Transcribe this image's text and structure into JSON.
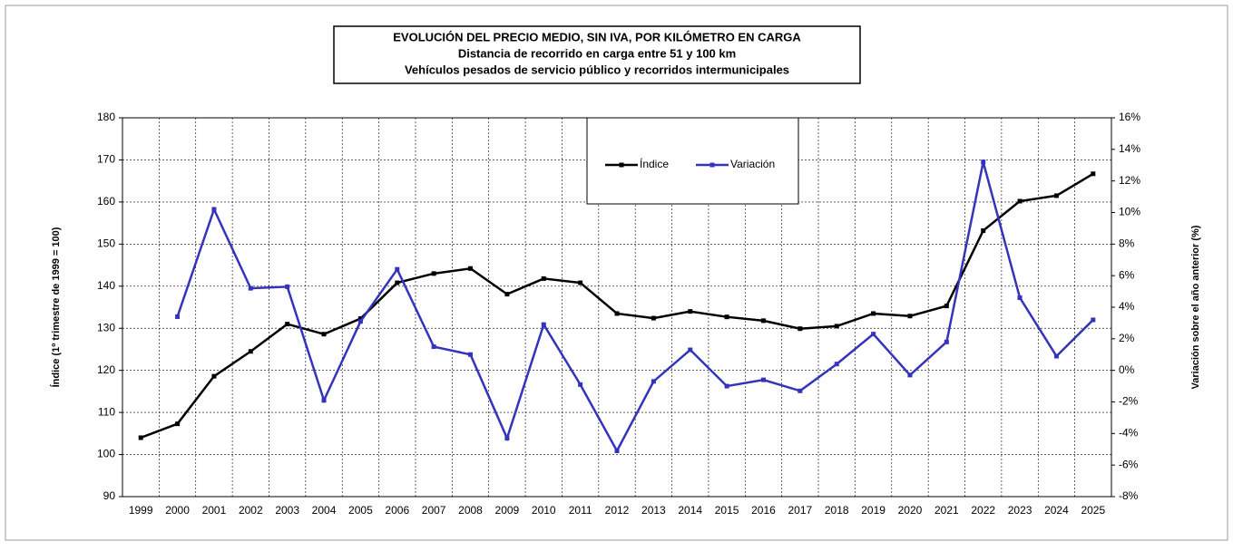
{
  "chart_data": {
    "type": "line",
    "title": [
      "EVOLUCIÓN DEL PRECIO MEDIO, SIN IVA, POR KILÓMETRO EN CARGA",
      "Distancia de recorrido en carga entre 51 y 100 km",
      "Vehículos pesados de servicio público y recorridos intermunicipales"
    ],
    "y_label": "Índice (1º trimestre de 1999 = 100)",
    "y2_label": "Variación sobre el año anterior (%)",
    "categories": [
      "1999",
      "2000",
      "2001",
      "2002",
      "2003",
      "2004",
      "2005",
      "2006",
      "2007",
      "2008",
      "2009",
      "2010",
      "2011",
      "2012",
      "2013",
      "2014",
      "2015",
      "2016",
      "2017",
      "2018",
      "2019",
      "2020",
      "2021",
      "2022",
      "2023",
      "2024",
      "2025"
    ],
    "series": [
      {
        "name": "Índice",
        "color": "#000000",
        "values": [
          104,
          107.3,
          118.6,
          124.5,
          131,
          128.6,
          132.3,
          140.8,
          143,
          144.2,
          138.1,
          141.8,
          140.8,
          133.5,
          132.4,
          134,
          132.7,
          131.8,
          129.9,
          130.5,
          133.5,
          132.9,
          135.3,
          153.2,
          160.2,
          161.5,
          166.7
        ]
      },
      {
        "name": "Variación",
        "color": "#3333bb",
        "axis": "y2",
        "values": [
          null,
          3.4,
          10.2,
          5.2,
          5.3,
          -1.9,
          3.1,
          6.4,
          1.5,
          1.0,
          -4.3,
          2.9,
          -0.9,
          -5.1,
          -0.7,
          1.3,
          -1.0,
          -0.6,
          -1.3,
          0.4,
          2.3,
          -0.3,
          1.8,
          13.2,
          4.6,
          0.9,
          3.2
        ]
      }
    ],
    "ylim": [
      90,
      180
    ],
    "yticks": [
      90,
      100,
      110,
      120,
      130,
      140,
      150,
      160,
      170,
      180
    ],
    "y2lim": [
      -8,
      16
    ],
    "y2ticks": [
      {
        "value": -8,
        "label": "-8%"
      },
      {
        "value": -6,
        "label": "-6%"
      },
      {
        "value": -4,
        "label": "-4%"
      },
      {
        "value": -2,
        "label": "-2%"
      },
      {
        "value": 0,
        "label": "0%"
      },
      {
        "value": 2,
        "label": "2%"
      },
      {
        "value": 4,
        "label": "4%"
      },
      {
        "value": 6,
        "label": "6%"
      },
      {
        "value": 8,
        "label": "8%"
      },
      {
        "value": 10,
        "label": "10%"
      },
      {
        "value": 12,
        "label": "12%"
      },
      {
        "value": 14,
        "label": "14%"
      },
      {
        "value": 16,
        "label": "16%"
      }
    ],
    "grid": true,
    "legend": "top"
  }
}
